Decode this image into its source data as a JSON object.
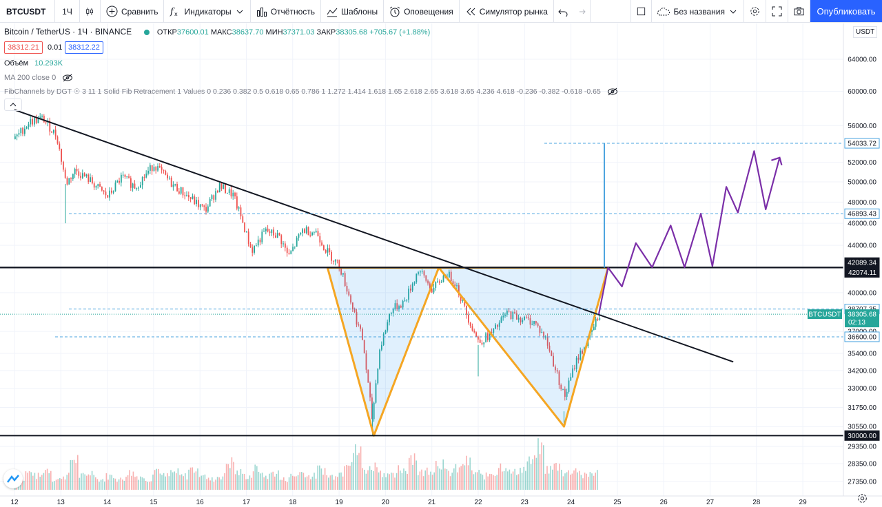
{
  "toolbar": {
    "symbol": "BTCUSDT",
    "interval": "1Ч",
    "compare": "Сравнить",
    "indicators": "Индикаторы",
    "financials": "Отчётность",
    "templates": "Шаблоны",
    "alerts": "Оповещения",
    "replay": "Симулятор рынка",
    "layout_name": "Без названия",
    "publish": "Опубликовать"
  },
  "legend": {
    "title": "Bitcoin / TetherUS · 1Ч · BINANCE",
    "open_label": "ОТКР",
    "open": "37600.01",
    "high_label": "МАКС",
    "high": "38637.70",
    "low_label": "МИН",
    "low": "37371.03",
    "close_label": "ЗАКР",
    "close": "38305.68",
    "change": "+705.67 (+1.88%)",
    "bid": "38312.21",
    "spread": "0.01",
    "ask": "38312.22",
    "volume_label": "Объём",
    "volume": "10.293K",
    "ma": "MA 200 close 0",
    "fib": "FibChannels by DGT ☉ 3 11 1 Solid Fib Retracement 1 Values 0 0.236 0.382 0.5 0.618 0.65 0.786 1 1.272 1.414 1.618 1.65 2.618 2.65 3.618 3.65 4.236 4.618 -0.236 -0.382 -0.618 -0.65"
  },
  "colors": {
    "up": "#26a69a",
    "down": "#ef5350",
    "pattern": "#f5a623",
    "projection": "#7b2fa8",
    "accent": "#2962ff",
    "target_line": "#4aa3df"
  },
  "currency": "USDT",
  "chart_data": {
    "type": "candlestick",
    "symbol": "BTCUSDT",
    "timeframe": "1h",
    "y_scale": "log",
    "ylim": [
      27000,
      68000
    ],
    "price_ticks": [
      64000,
      60000,
      56000,
      52000,
      50000,
      48000,
      46000,
      44000,
      40000,
      37000,
      35400,
      34200,
      33000,
      31750,
      30550,
      29350,
      28350,
      27350
    ],
    "date_ticks": [
      "12",
      "13",
      "14",
      "15",
      "16",
      "17",
      "18",
      "19",
      "20",
      "21",
      "22",
      "23",
      "24",
      "25",
      "26",
      "27",
      "28",
      "29"
    ],
    "horizontal_levels": [
      {
        "price": 42089.34,
        "label": "42089.34",
        "style": "solid"
      },
      {
        "price": 42074.11,
        "label": "42074.11",
        "style": "solid"
      },
      {
        "price": 30000.0,
        "label": "30000.00",
        "style": "solid"
      },
      {
        "price": 54033.72,
        "label": "54033.72",
        "style": "dashed"
      },
      {
        "price": 46893.43,
        "label": "46893.43",
        "style": "dashed"
      },
      {
        "price": 38707.35,
        "label": "38707.35",
        "style": "dashed"
      },
      {
        "price": 36600.0,
        "label": "36600.00",
        "style": "dashed"
      }
    ],
    "last_price": {
      "label": "BTCUSDT",
      "value": "38305.68",
      "countdown": "02:13"
    },
    "trendline": {
      "from": [
        "12",
        57800
      ],
      "to": [
        "27.5",
        34800
      ]
    },
    "price_path": [
      [
        "12.0",
        54500
      ],
      [
        "12.3",
        56400
      ],
      [
        "12.6",
        56800
      ],
      [
        "12.9",
        54800
      ],
      [
        "13.1",
        49800
      ],
      [
        "13.3",
        51200
      ],
      [
        "13.6",
        50200
      ],
      [
        "14.0",
        48500
      ],
      [
        "14.3",
        50500
      ],
      [
        "14.6",
        49500
      ],
      [
        "15.0",
        51800
      ],
      [
        "15.4",
        49700
      ],
      [
        "15.8",
        48300
      ],
      [
        "16.1",
        47200
      ],
      [
        "16.4",
        49600
      ],
      [
        "16.7",
        48700
      ],
      [
        "16.9",
        46200
      ],
      [
        "17.1",
        43500
      ],
      [
        "17.4",
        45300
      ],
      [
        "17.7",
        44800
      ],
      [
        "17.9",
        43000
      ],
      [
        "18.2",
        45400
      ],
      [
        "18.5",
        45200
      ],
      [
        "18.7",
        43600
      ],
      [
        "19.0",
        42200
      ],
      [
        "19.2",
        39800
      ],
      [
        "19.5",
        36300
      ],
      [
        "19.7",
        31000
      ],
      [
        "19.85",
        35500
      ],
      [
        "20.1",
        38600
      ],
      [
        "20.4",
        39300
      ],
      [
        "20.7",
        41900
      ],
      [
        "21.0",
        40200
      ],
      [
        "21.3",
        41600
      ],
      [
        "21.5",
        40800
      ],
      [
        "21.75",
        38200
      ],
      [
        "22.0",
        36200
      ],
      [
        "22.3",
        36900
      ],
      [
        "22.6",
        38400
      ],
      [
        "22.9",
        38000
      ],
      [
        "23.2",
        37700
      ],
      [
        "23.45",
        36400
      ],
      [
        "23.65",
        34300
      ],
      [
        "23.85",
        32400
      ],
      [
        "24.1",
        34900
      ],
      [
        "24.35",
        36300
      ],
      [
        "24.6",
        38300
      ]
    ],
    "volume_profile": [
      3,
      5,
      4,
      6,
      3,
      4,
      9,
      4,
      5,
      3,
      4,
      3,
      5,
      4,
      3,
      6,
      4,
      5,
      4,
      6,
      5,
      3,
      4,
      8,
      5,
      4,
      6,
      4,
      5,
      3,
      4,
      5,
      4,
      6,
      4,
      5,
      9,
      11,
      6,
      7,
      5,
      4,
      6,
      10,
      5,
      6,
      8,
      5,
      6,
      8,
      5,
      4,
      5,
      7,
      5,
      6,
      8,
      12,
      6,
      7,
      5,
      6,
      4,
      5
    ],
    "inverse_head_shoulders": {
      "neckline": 42074.11,
      "left_shoulder": [
        "19.75",
        30000
      ],
      "head_peak": [
        "21.15",
        42074
      ],
      "right_shoulder": [
        "23.85",
        30550
      ],
      "breakout": [
        "24.8",
        42074
      ]
    },
    "projection_path": [
      [
        "24.8",
        42074
      ],
      [
        "25.1",
        40500
      ],
      [
        "25.4",
        44200
      ],
      [
        "25.75",
        42100
      ],
      [
        "26.15",
        45800
      ],
      [
        "26.45",
        42100
      ],
      [
        "26.8",
        46900
      ],
      [
        "27.05",
        42200
      ],
      [
        "27.35",
        49500
      ],
      [
        "27.6",
        47000
      ],
      [
        "27.95",
        53200
      ],
      [
        "28.2",
        47300
      ],
      [
        "28.5",
        52500
      ]
    ],
    "measured_move": {
      "from": 42074.11,
      "to": 54033.72
    }
  }
}
